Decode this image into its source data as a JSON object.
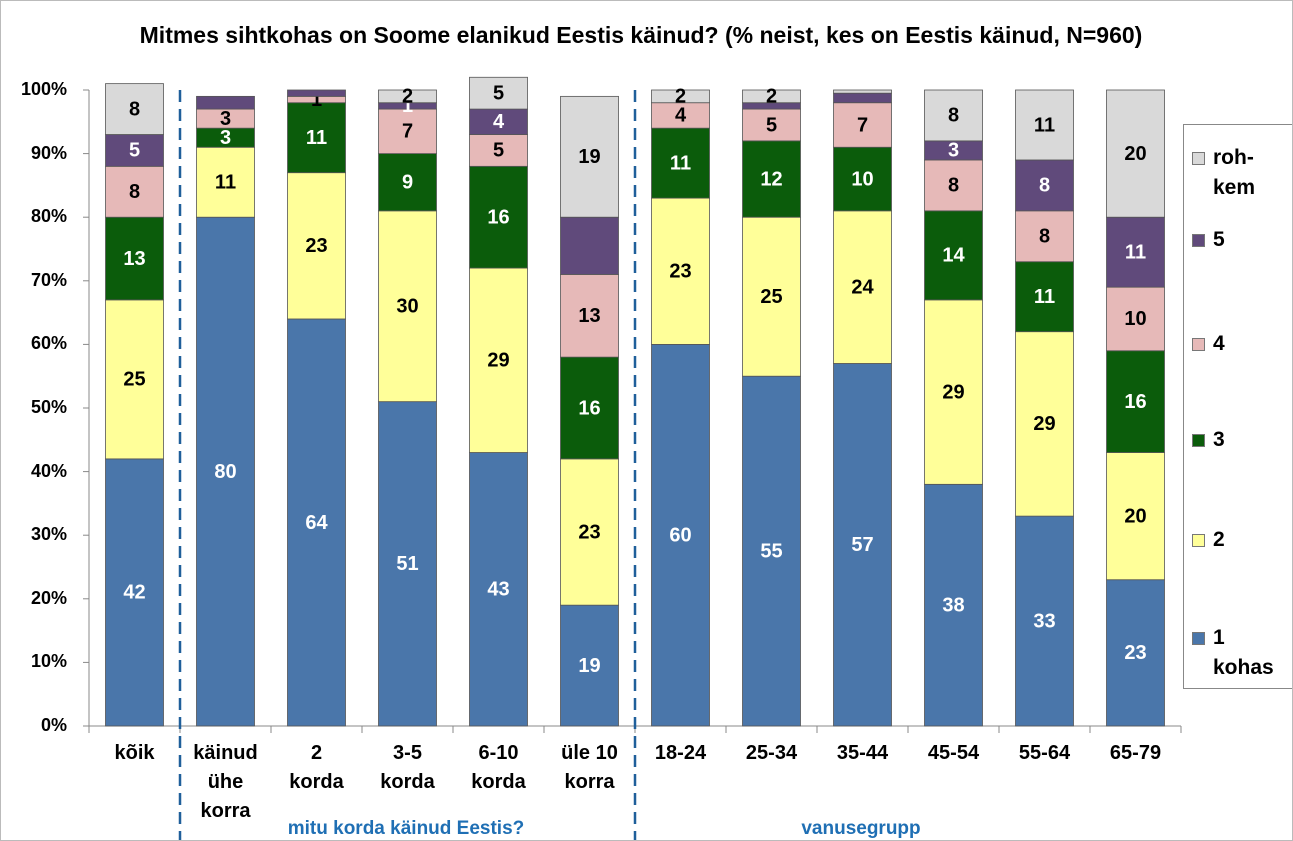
{
  "chart_data": {
    "type": "stacked_bar",
    "title": "Mitmes sihtkohas on Soome elanikud Eestis käinud? (% neist, kes on Eestis käinud, N=960)",
    "categories": [
      "kõik",
      "käinud\nühe\nkorra",
      "2\nkorda",
      "3-5\nkorda",
      "6-10\nkorda",
      "üle 10\nkorra",
      "18-24",
      "25-34",
      "35-44",
      "45-54",
      "55-64",
      "65-79"
    ],
    "groups": [
      "mitu korda käinud Eestis?",
      "vanusegrupp"
    ],
    "ylim": [
      0,
      100
    ],
    "yticks": [
      {
        "value": 0,
        "label": "0%"
      },
      {
        "value": 10,
        "label": "10%"
      },
      {
        "value": 20,
        "label": "20%"
      },
      {
        "value": 30,
        "label": "30%"
      },
      {
        "value": 40,
        "label": "40%"
      },
      {
        "value": 50,
        "label": "50%"
      },
      {
        "value": 60,
        "label": "60%"
      },
      {
        "value": 70,
        "label": "70%"
      },
      {
        "value": 80,
        "label": "80%"
      },
      {
        "value": 90,
        "label": "90%"
      },
      {
        "value": 100,
        "label": "100%"
      }
    ],
    "series": [
      {
        "name": "1 kohas",
        "color": "#4a76aa",
        "label_color": "#ffffff",
        "values": [
          42,
          80,
          64,
          51,
          43,
          19,
          60,
          55,
          57,
          38,
          33,
          23
        ],
        "value_labels": [
          "42",
          "80",
          "64",
          "51",
          "43",
          "19",
          "60",
          "55",
          "57",
          "38",
          "33",
          "23"
        ]
      },
      {
        "name": "2",
        "color": "#ffff99",
        "label_color": "#000000",
        "values": [
          25,
          11,
          23,
          30,
          29,
          23,
          23,
          25,
          24,
          29,
          29,
          20
        ],
        "value_labels": [
          "25",
          "11",
          "23",
          "30",
          "29",
          "23",
          "23",
          "25",
          "24",
          "29",
          "29",
          "20"
        ]
      },
      {
        "name": "3",
        "color": "#0b5c0b",
        "label_color": "#ffffff",
        "values": [
          13,
          3,
          11,
          9,
          16,
          16,
          11,
          12,
          10,
          14,
          11,
          16
        ],
        "value_labels": [
          "13",
          "3",
          "11",
          "9",
          "16",
          "16",
          "11",
          "12",
          "10",
          "14",
          "11",
          "16"
        ]
      },
      {
        "name": "4",
        "color": "#e6b9b8",
        "label_color": "#000000",
        "values": [
          8,
          3,
          1,
          7,
          5,
          13,
          4,
          5,
          7,
          8,
          8,
          10
        ],
        "value_labels": [
          "8",
          "3",
          "1",
          "7",
          "5",
          "13",
          "4",
          "5",
          "7",
          "8",
          "8",
          "10"
        ]
      },
      {
        "name": "5",
        "color": "#604a7b",
        "label_color": "#ffffff",
        "values": [
          5,
          2,
          1,
          1,
          4,
          9,
          null,
          1,
          1.5,
          3,
          8,
          11
        ],
        "value_labels": [
          "5",
          null,
          null,
          "1",
          "4",
          null,
          null,
          null,
          null,
          "3",
          "8",
          "11"
        ]
      },
      {
        "name": "roh-kem",
        "color": "#d9d9d9",
        "label_color": "#000000",
        "values": [
          8,
          null,
          null,
          2,
          5,
          19,
          2,
          2,
          0.5,
          8,
          11,
          20
        ],
        "value_labels": [
          "8",
          null,
          null,
          "2",
          "5",
          "19",
          "2",
          "2",
          null,
          "8",
          "11",
          "20"
        ]
      }
    ]
  }
}
